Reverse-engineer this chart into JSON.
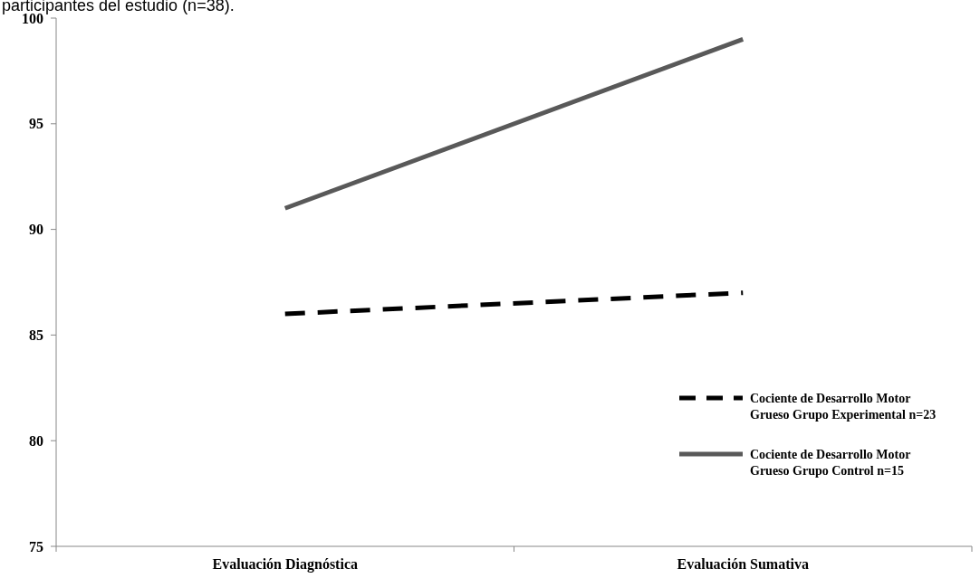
{
  "chart_data": {
    "type": "line",
    "annotations": [
      "participantes del estudio (n=38)."
    ],
    "categories": [
      "Evaluación Diagnóstica",
      "Evaluación Sumativa"
    ],
    "series": [
      {
        "name": "Cociente de Desarrollo Motor Grueso Grupo Experimental n=23",
        "color": "#000000",
        "values": [
          86,
          87
        ],
        "line_style": "dashed"
      },
      {
        "name": "Cociente de Desarrollo Motor Grueso Grupo Control n=15",
        "color": "#595959",
        "values": [
          91,
          99
        ],
        "line_style": "solid"
      }
    ],
    "ylim": [
      75,
      100
    ],
    "yticks": [
      75,
      80,
      85,
      90,
      95,
      100
    ],
    "legend": "bottom right",
    "grid": false
  }
}
